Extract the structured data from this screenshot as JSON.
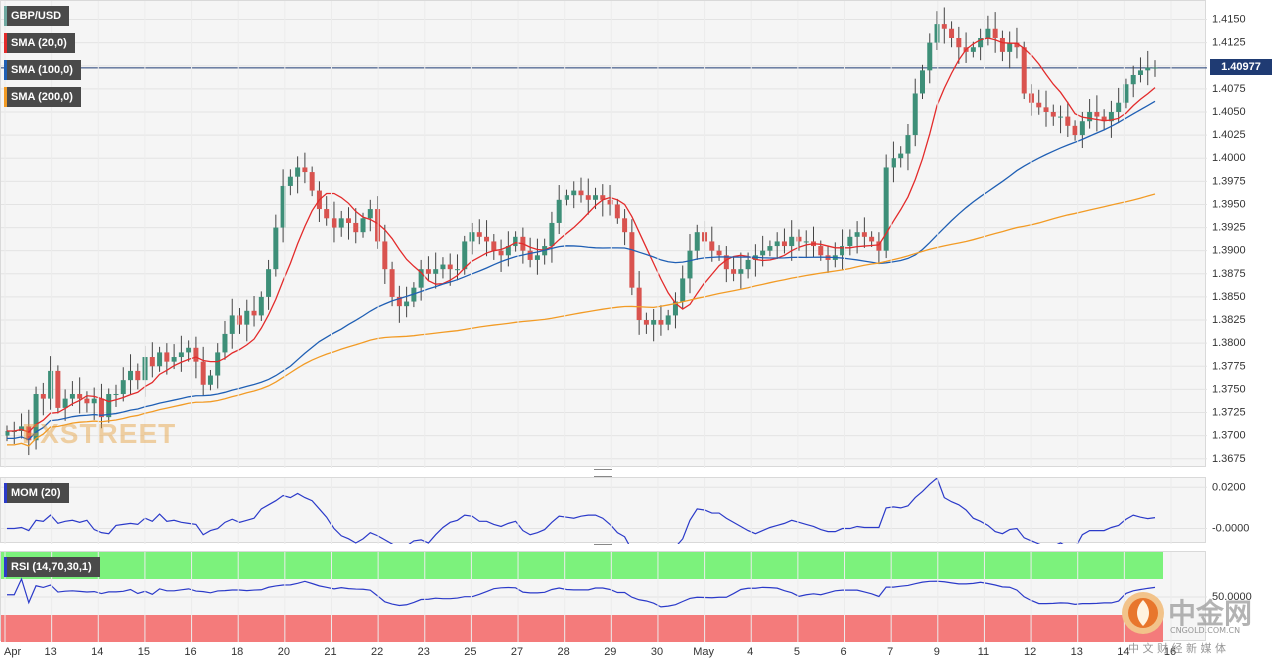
{
  "chart_data": [
    {
      "type": "candlestick",
      "title": "GBP/USD",
      "indicators": [
        {
          "name": "SMA (20,0)",
          "color": "#e32b2b"
        },
        {
          "name": "SMA (100,0)",
          "color": "#1f5fb4"
        },
        {
          "name": "SMA (200,0)",
          "color": "#f29b25"
        }
      ],
      "last_price": "1.40977",
      "y_ticks": [
        "1.4150",
        "1.4125",
        "1.4100",
        "1.4075",
        "1.4050",
        "1.4025",
        "1.4000",
        "1.3975",
        "1.3950",
        "1.3925",
        "1.3900",
        "1.3875",
        "1.3850",
        "1.3825",
        "1.3800",
        "1.3775",
        "1.3750",
        "1.3725",
        "1.3700",
        "1.3675"
      ],
      "ylim": [
        1.3665,
        1.417
      ],
      "x_ticks": [
        "Apr",
        "13",
        "14",
        "15",
        "16",
        "18",
        "20",
        "21",
        "22",
        "23",
        "25",
        "27",
        "28",
        "29",
        "30",
        "May",
        "4",
        "5",
        "6",
        "7",
        "9",
        "11",
        "12",
        "13",
        "14",
        "16"
      ],
      "close_series": [
        1.3705,
        1.3705,
        1.371,
        1.3695,
        1.3745,
        1.374,
        1.377,
        1.373,
        1.374,
        1.3745,
        1.374,
        1.3735,
        1.374,
        1.372,
        1.3745,
        1.3745,
        1.376,
        1.377,
        1.376,
        1.3785,
        1.3775,
        1.379,
        1.378,
        1.3785,
        1.379,
        1.3795,
        1.378,
        1.3755,
        1.3765,
        1.379,
        1.381,
        1.383,
        1.382,
        1.3835,
        1.383,
        1.385,
        1.388,
        1.3925,
        1.397,
        1.398,
        1.399,
        1.3985,
        1.3965,
        1.3945,
        1.3935,
        1.3925,
        1.3935,
        1.393,
        1.392,
        1.3935,
        1.3945,
        1.391,
        1.388,
        1.385,
        1.384,
        1.3845,
        1.386,
        1.388,
        1.3875,
        1.388,
        1.3885,
        1.388,
        1.388,
        1.391,
        1.392,
        1.3915,
        1.391,
        1.39,
        1.3895,
        1.3905,
        1.3915,
        1.39,
        1.389,
        1.3895,
        1.3905,
        1.393,
        1.3955,
        1.396,
        1.3965,
        1.396,
        1.3955,
        1.396,
        1.3955,
        1.395,
        1.3935,
        1.392,
        1.386,
        1.3825,
        1.382,
        1.3825,
        1.382,
        1.383,
        1.3845,
        1.387,
        1.39,
        1.392,
        1.391,
        1.39,
        1.3895,
        1.388,
        1.3875,
        1.388,
        1.389,
        1.3895,
        1.39,
        1.3905,
        1.391,
        1.3905,
        1.3915,
        1.391,
        1.391,
        1.3905,
        1.3895,
        1.389,
        1.3895,
        1.3905,
        1.3915,
        1.392,
        1.3915,
        1.391,
        1.39,
        1.399,
        1.4,
        1.4005,
        1.4025,
        1.407,
        1.4095,
        1.4125,
        1.4145,
        1.414,
        1.413,
        1.412,
        1.4115,
        1.412,
        1.413,
        1.414,
        1.413,
        1.4115,
        1.4125,
        1.412,
        1.407,
        1.406,
        1.4055,
        1.405,
        1.4045,
        1.4045,
        1.4035,
        1.4025,
        1.404,
        1.405,
        1.4045,
        1.404,
        1.405,
        1.406,
        1.408,
        1.409,
        1.4095,
        1.4098,
        1.4098
      ]
    },
    {
      "type": "line",
      "title": "MOM (20)",
      "y_ticks": [
        "0.0200",
        "-0.0000"
      ],
      "ylim": [
        -0.0075,
        0.0245
      ],
      "color": "#2b3ac9"
    },
    {
      "type": "line",
      "title": "RSI (14,70,30,1)",
      "y_ticks": [
        "50.0000"
      ],
      "ylim": [
        0,
        100
      ],
      "overbought": 70,
      "oversold": 30,
      "color": "#2b3ac9",
      "overbought_color": "#7cf27c",
      "oversold_color": "#f47b7b"
    }
  ],
  "watermark_logo": "FXSTREET",
  "watermark_cn": {
    "title": "中金网",
    "url": "CNGOLD.COM.CN",
    "subtitle": "中 文 财 经 新 媒 体"
  }
}
